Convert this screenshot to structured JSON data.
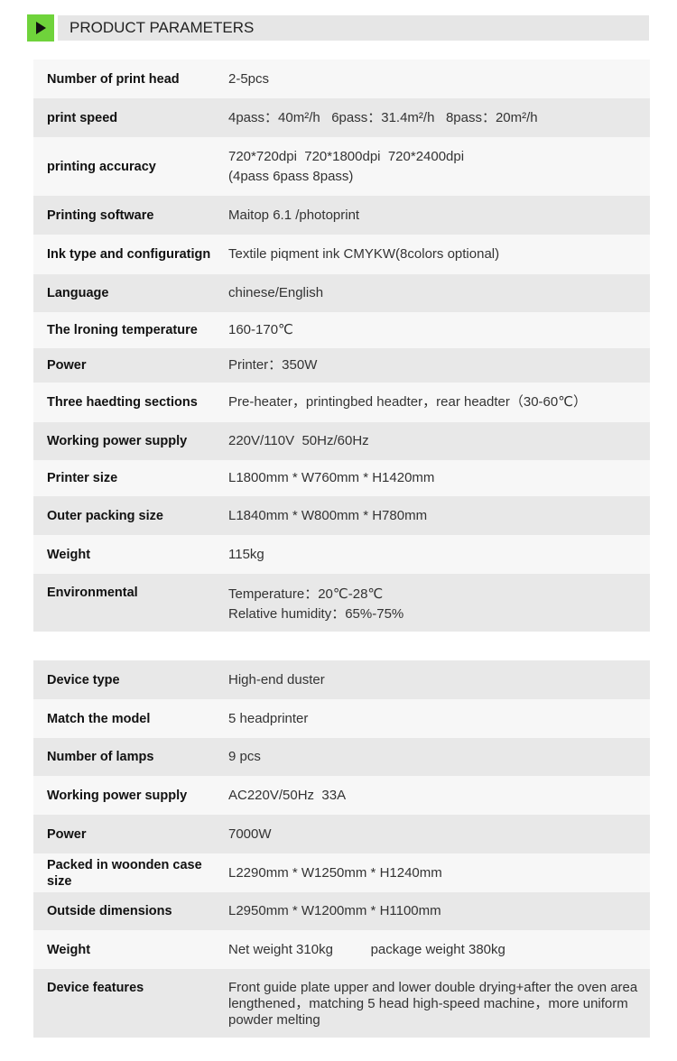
{
  "header": {
    "title": "PRODUCT PARAMETERS",
    "icon": "play-arrow-icon",
    "accent": "#6fd33b"
  },
  "printer_specs": [
    {
      "label": "Number of print head",
      "value": [
        "2-5pcs"
      ]
    },
    {
      "label": "print speed",
      "value": [
        "4pass：40m²/h   6pass：31.4m²/h   8pass：20m²/h"
      ]
    },
    {
      "label": "printing accuracy",
      "value": [
        "720*720dpi  720*1800dpi  720*2400dpi",
        "(4pass 6pass 8pass)"
      ]
    },
    {
      "label": "Printing software",
      "value": [
        "Maitop 6.1 /photoprint"
      ]
    },
    {
      "label": "Ink type and configuratign",
      "value": [
        "Textile piqment ink CMYKW(8colors optional)"
      ]
    },
    {
      "label": "Language",
      "value": [
        "chinese/English"
      ]
    },
    {
      "label": "The lroning temperature",
      "value": [
        "160-170℃"
      ]
    },
    {
      "label": "Power",
      "value": [
        "Printer：350W"
      ]
    },
    {
      "label": "Three haedting sections",
      "value": [
        "Pre-heater，printingbed headter，rear headter（30-60℃）"
      ]
    },
    {
      "label": "Working power supply",
      "value": [
        "220V/110V  50Hz/60Hz"
      ]
    },
    {
      "label": "Printer size",
      "value": [
        "L1800mm * W760mm * H1420mm"
      ]
    },
    {
      "label": "Outer packing size",
      "value": [
        "L1840mm * W800mm * H780mm"
      ]
    },
    {
      "label": "Weight",
      "value": [
        "115kg"
      ]
    },
    {
      "label": "Environmental",
      "value": [
        "Temperature：20℃-28℃",
        "Relative humidity：65%-75%"
      ]
    }
  ],
  "duster_specs": [
    {
      "label": "Device type",
      "value": [
        "High-end duster"
      ]
    },
    {
      "label": "Match the model",
      "value": [
        "5 headprinter"
      ]
    },
    {
      "label": "Number of lamps",
      "value": [
        "9 pcs"
      ]
    },
    {
      "label": "Working power supply",
      "value": [
        "AC220V/50Hz  33A"
      ]
    },
    {
      "label": "Power",
      "value": [
        "7000W"
      ]
    },
    {
      "label": "Packed in woonden case size",
      "value": [
        "L2290mm * W1250mm * H1240mm"
      ]
    },
    {
      "label": "Outside dimensions",
      "value": [
        "L2950mm * W1200mm * H1100mm"
      ]
    },
    {
      "label": "Weight",
      "value": [
        "Net weight 310kg          package weight 380kg"
      ]
    },
    {
      "label": "Device features",
      "value": [
        "Front guide plate upper and lower double drying+after the oven area lengthened，matching 5 head high-speed machine，more uniform powder melting"
      ]
    }
  ]
}
